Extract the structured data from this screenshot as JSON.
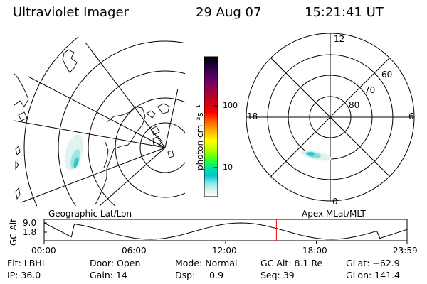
{
  "header": {
    "title": "Ultraviolet Imager",
    "date": "29 Aug 07",
    "time": "15:21:41 UT"
  },
  "colorbar": {
    "unit_label": "photon cm⁻²s⁻¹",
    "ticks": [
      "100",
      "10"
    ],
    "colors": [
      "#000000",
      "#1a0033",
      "#3a0050",
      "#5c0060",
      "#800060",
      "#a00040",
      "#c00020",
      "#e00010",
      "#ff0000",
      "#ff5000",
      "#ff8c00",
      "#ffc800",
      "#ffff00",
      "#c8ff00",
      "#80ff00",
      "#20ff40",
      "#00e0a0",
      "#00c8d0",
      "#80e8e8",
      "#d8f0f0",
      "#ffffff"
    ]
  },
  "polar": {
    "mlt_labels": {
      "top": "12",
      "left": "18",
      "right": "6",
      "bottom": "0"
    },
    "lat_labels": [
      "60",
      "70",
      "80"
    ]
  },
  "panels": {
    "left_caption": "Geographic Lat/Lon",
    "right_caption": "Apex MLat/MLT"
  },
  "timeline": {
    "ylabel": "GC Alt",
    "y_max_label": "9.0",
    "y_min_label": "1.8",
    "x_ticks": [
      "00:00",
      "06:00",
      "12:00",
      "18:00",
      "23:59"
    ],
    "marker_time_hours": 15.36,
    "line_color": "#000000",
    "marker_color": "#ff0000"
  },
  "info": {
    "row1": {
      "filter": "Flt: LBHL",
      "door": "Door: Open",
      "mode": "Mode: Normal",
      "gc_alt": "GC Alt: 8.1 Re",
      "glat": "GLat: −62.9"
    },
    "row2": {
      "ip": "IP: 36.0",
      "gain": "Gain: 14",
      "dsp": "Dsp:     0.9",
      "seq": "Seq: 39",
      "glon": "GLon: 141.4"
    }
  }
}
